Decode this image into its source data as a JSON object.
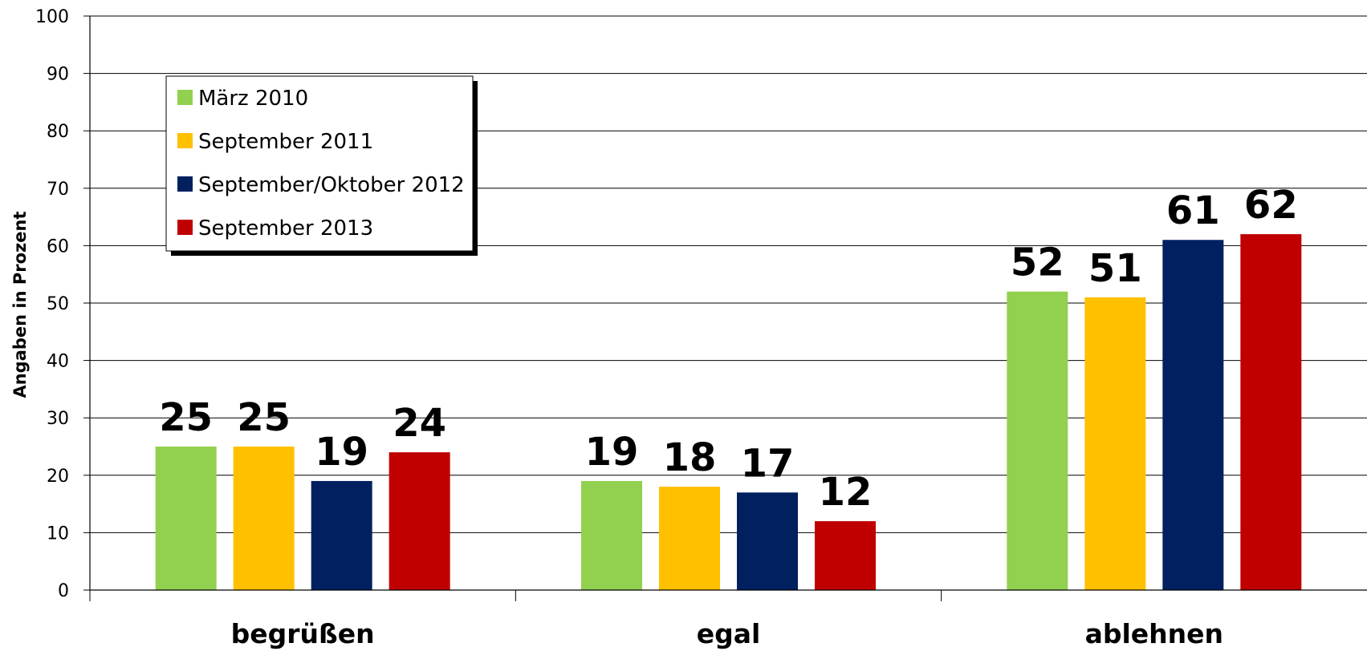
{
  "chart_data": {
    "type": "bar",
    "ylabel": "Angaben in Prozent",
    "ylim": [
      0,
      100
    ],
    "yticks": [
      0,
      10,
      20,
      30,
      40,
      50,
      60,
      70,
      80,
      90,
      100
    ],
    "grid": true,
    "legend_position": "top-left",
    "categories": [
      "begrüßen",
      "egal",
      "ablehnen"
    ],
    "series": [
      {
        "name": "März 2010",
        "color": "#92D050",
        "values": [
          25,
          19,
          52
        ]
      },
      {
        "name": "September 2011",
        "color": "#FFC000",
        "values": [
          25,
          18,
          51
        ]
      },
      {
        "name": "September/Oktober 2012",
        "color": "#002060",
        "values": [
          19,
          17,
          61
        ]
      },
      {
        "name": "September 2013",
        "color": "#C00000",
        "values": [
          24,
          12,
          62
        ]
      }
    ]
  }
}
